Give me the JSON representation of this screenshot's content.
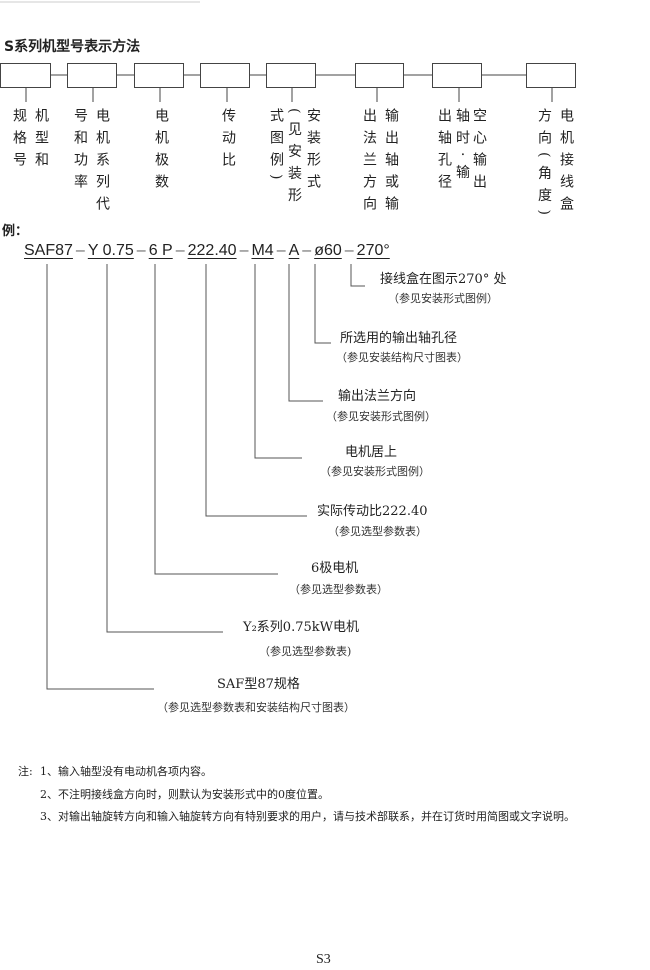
{
  "title": "S系列机型号表示方法",
  "boxes": [
    {
      "columns": [
        "机型和",
        "规格号"
      ]
    },
    {
      "columns": [
        "电机系列代",
        "号和功率"
      ]
    },
    {
      "columns": [
        "电机极数"
      ]
    },
    {
      "columns": [
        "传动比"
      ]
    },
    {
      "columns": [
        "安装形式",
        "(见安装形",
        "式图例)"
      ]
    },
    {
      "columns": [
        "输出轴或输",
        "出法兰方向"
      ]
    },
    {
      "columns": [
        "空心输出",
        "轴时·输",
        "出轴孔径"
      ]
    },
    {
      "columns": [
        "电机接线盒",
        "方向(角度)"
      ]
    }
  ],
  "example": {
    "heading": "例：",
    "segments": [
      "SAF87",
      "Y 0.75",
      "6 P",
      "222.40",
      "M4",
      "A",
      "ø60",
      "270°"
    ],
    "separator": "–",
    "explanations": [
      {
        "label": "接线盒在图示270° 处",
        "note": "（参见安装形式图例）"
      },
      {
        "label": "所选用的输出轴孔径",
        "note": "（参见安装结构尺寸图表）"
      },
      {
        "label": "输出法兰方向",
        "note": "（参见安装形式图例）"
      },
      {
        "label": "电机居上",
        "note": "（参见安装形式图例）"
      },
      {
        "label": "实际传动比222.40",
        "note": "（参见选型参数表）"
      },
      {
        "label": "6极电机",
        "note": "（参见选型参数表）"
      },
      {
        "label": "Y₂系列0.75kW电机",
        "note": "（参见选型参数表)"
      },
      {
        "label": "SAF型87规格",
        "note": "（参见选型参数表和安装结构尺寸图表）"
      }
    ]
  },
  "notes": {
    "prefix": "注:",
    "items": [
      "1、输入轴型没有电动机各项内容。",
      "2、不注明接线盒方向时，则默认为安装形式中的0度位置。",
      "3、对输出轴旋转方向和输入轴旋转方向有特别要求的用户，请与技术部联系，并在订货时用简图或文字说明。"
    ]
  },
  "page_number": "S3"
}
